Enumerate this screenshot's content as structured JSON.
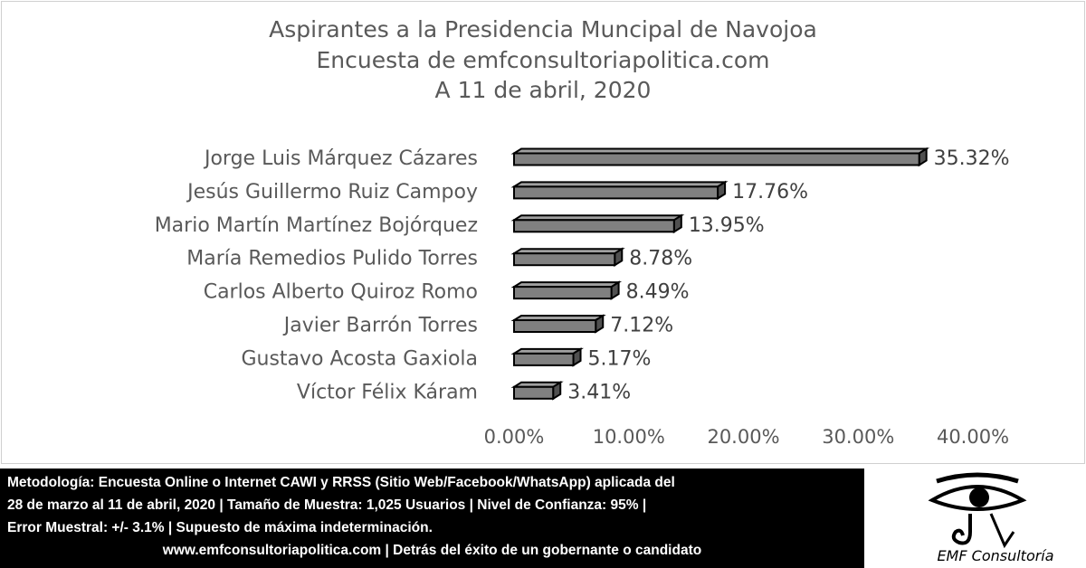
{
  "chart_data": {
    "type": "bar",
    "orientation": "horizontal",
    "title": [
      "Aspirantes a la Presidencia Muncipal de Navojoa",
      "Encuesta de emfconsultoriapolitica.com",
      "A 11 de abril, 2020"
    ],
    "categories": [
      "Jorge Luis Márquez Cázares",
      "Jesús Guillermo Ruiz Campoy",
      "Mario Martín Martínez Bojórquez",
      "María Remedios Pulido Torres",
      "Carlos Alberto Quiroz Romo",
      "Javier Barrón Torres",
      "Gustavo Acosta Gaxiola",
      "Víctor Félix Káram"
    ],
    "values": [
      35.32,
      17.76,
      13.95,
      8.78,
      8.49,
      7.12,
      5.17,
      3.41
    ],
    "data_labels": [
      "35.32%",
      "17.76%",
      "13.95%",
      "8.78%",
      "8.49%",
      "7.12%",
      "5.17%",
      "3.41%"
    ],
    "xlim": [
      0,
      40
    ],
    "xticks": [
      "0.00%",
      "10.00%",
      "20.00%",
      "30.00%",
      "40.00%"
    ],
    "grid": false,
    "bar_color": "#808080",
    "style": "3d"
  },
  "footer": {
    "lines": [
      "Metodología: Encuesta Online o Internet CAWI y RRSS (Sitio Web/Facebook/WhatsApp) aplicada del",
      "28 de marzo al 11 de abril, 2020 | Tamaño de Muestra: 1,025 Usuarios | Nivel de Confianza: 95% |",
      "Error Muestral: +/- 3.1% | Supuesto de máxima indeterminación."
    ],
    "tagline": "www.emfconsultoriapolitica.com | Detrás del éxito de un gobernante o candidato"
  },
  "logo": {
    "text": "EMF Consultoría",
    "icon": "eye-of-horus-icon"
  }
}
